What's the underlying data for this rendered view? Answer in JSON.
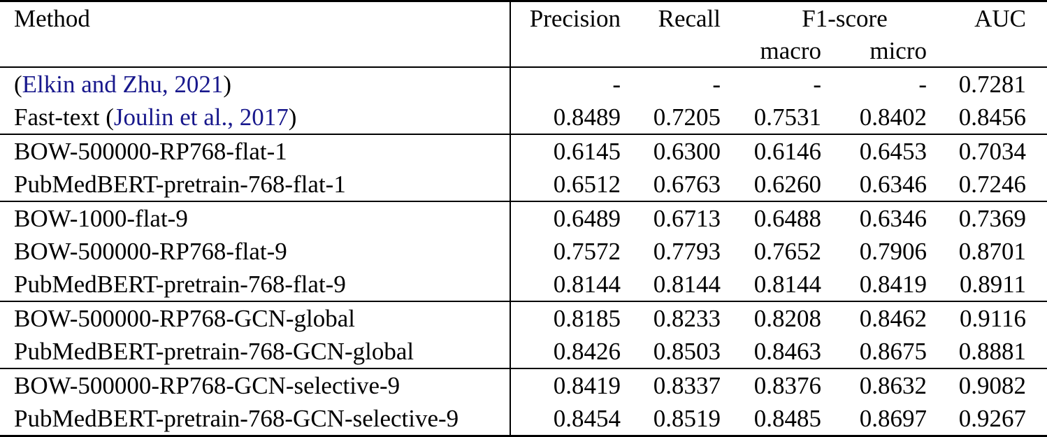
{
  "table": {
    "colors": {
      "citation_blue": "#18188C",
      "text": "#000000",
      "border": "#000000",
      "background": "#FFFFFF"
    },
    "header": {
      "method": "Method",
      "precision": "Precision",
      "recall": "Recall",
      "f1": "F1-score",
      "f1_macro": "macro",
      "f1_micro": "micro",
      "auc": "AUC"
    },
    "rows": [
      {
        "prefix": "(",
        "link": "Elkin and Zhu, 2021",
        "suffix": ")",
        "values": [
          "-",
          "-",
          "-",
          "-",
          "0.7281"
        ]
      },
      {
        "prefix": "Fast-text (",
        "link": "Joulin et al., 2017",
        "suffix": ")",
        "values": [
          "0.8489",
          "0.7205",
          "0.7531",
          "0.8402",
          "0.8456"
        ]
      },
      {
        "method": "BOW-500000-RP768-flat-1",
        "values": [
          "0.6145",
          "0.6300",
          "0.6146",
          "0.6453",
          "0.7034"
        ]
      },
      {
        "method": "PubMedBERT-pretrain-768-flat-1",
        "values": [
          "0.6512",
          "0.6763",
          "0.6260",
          "0.6346",
          "0.7246"
        ]
      },
      {
        "method": "BOW-1000-flat-9",
        "values": [
          "0.6489",
          "0.6713",
          "0.6488",
          "0.6346",
          "0.7369"
        ]
      },
      {
        "method": "BOW-500000-RP768-flat-9",
        "values": [
          "0.7572",
          "0.7793",
          "0.7652",
          "0.7906",
          "0.8701"
        ]
      },
      {
        "method": "PubMedBERT-pretrain-768-flat-9",
        "values": [
          "0.8144",
          "0.8144",
          "0.8144",
          "0.8419",
          "0.8911"
        ]
      },
      {
        "method": "BOW-500000-RP768-GCN-global",
        "values": [
          "0.8185",
          "0.8233",
          "0.8208",
          "0.8462",
          "0.9116"
        ]
      },
      {
        "method": "PubMedBERT-pretrain-768-GCN-global",
        "values": [
          "0.8426",
          "0.8503",
          "0.8463",
          "0.8675",
          "0.8881"
        ]
      },
      {
        "method": "BOW-500000-RP768-GCN-selective-9",
        "values": [
          "0.8419",
          "0.8337",
          "0.8376",
          "0.8632",
          "0.9082"
        ]
      },
      {
        "method": "PubMedBERT-pretrain-768-GCN-selective-9",
        "values": [
          "0.8454",
          "0.8519",
          "0.8485",
          "0.8697",
          "0.9267"
        ]
      }
    ]
  }
}
